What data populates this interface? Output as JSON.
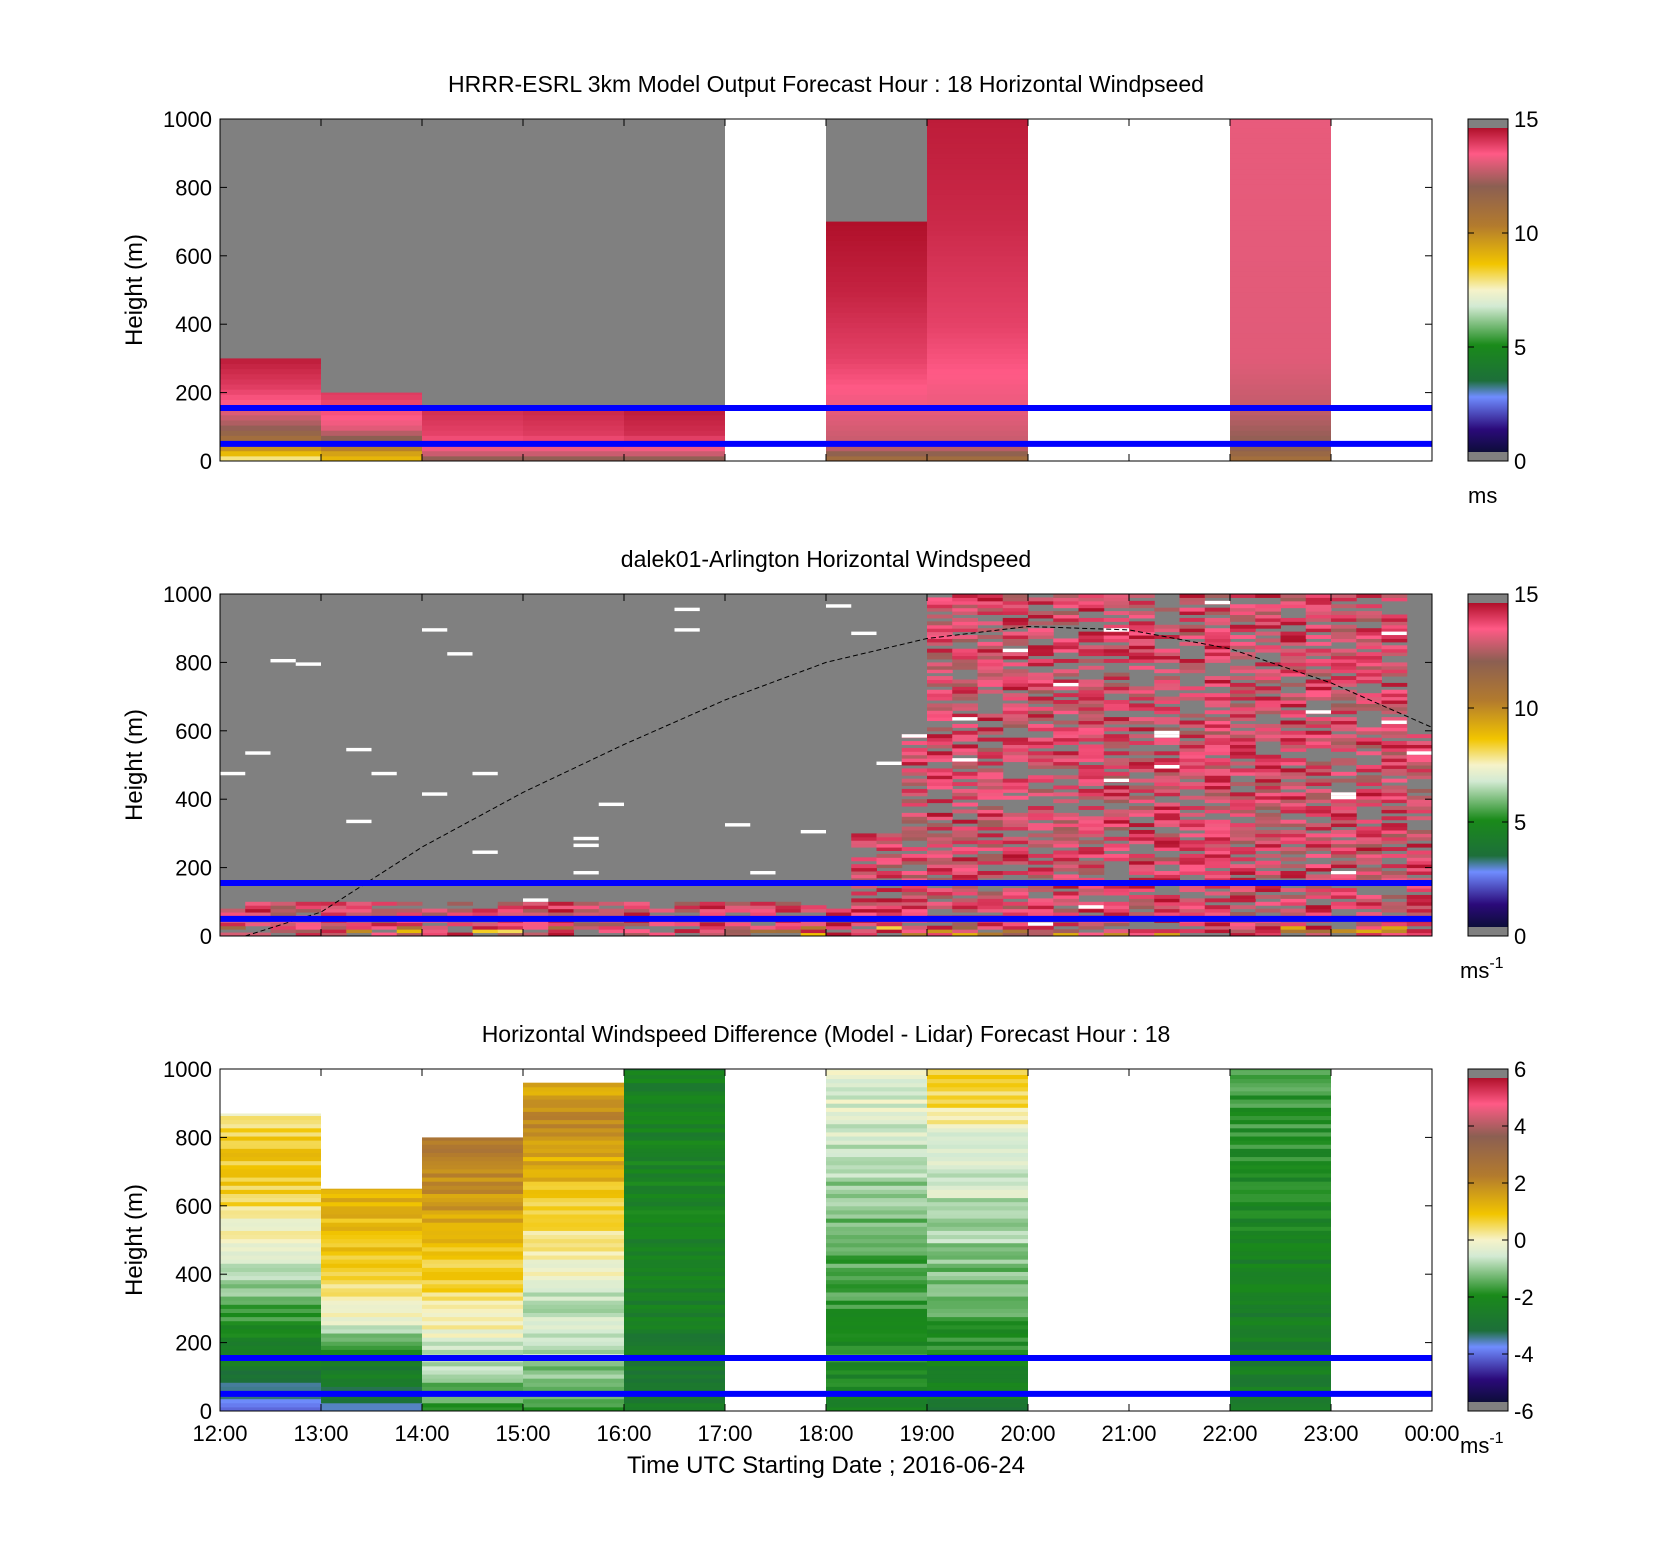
{
  "figure": {
    "xlabel": "Time UTC  Starting Date ; 2016-06-24",
    "x_ticks": [
      "12:00",
      "13:00",
      "14:00",
      "15:00",
      "16:00",
      "17:00",
      "18:00",
      "19:00",
      "20:00",
      "21:00",
      "22:00",
      "23:00",
      "00:00"
    ],
    "y_ticks": [
      "0",
      "200",
      "400",
      "600",
      "800",
      "1000"
    ],
    "ylabel": "Height (m)",
    "reference_lines_m": [
      50,
      155
    ],
    "reference_line_color": "#0000ff"
  },
  "chart_data": [
    {
      "type": "heatmap",
      "title": "HRRR-ESRL 3km Model Output   Forecast Hour : 18 Horizontal Windpseed",
      "ylabel": "Height (m)",
      "ylim": [
        0,
        1000
      ],
      "xlim_hours": [
        12,
        24
      ],
      "colorbar": {
        "ticks": [
          "0",
          "5",
          "10",
          "15"
        ],
        "range": [
          0,
          15
        ],
        "unit": "ms",
        "unit_sup": ""
      },
      "columns": [
        {
          "start_hour": 12,
          "end_hour": 13,
          "top_m": 300,
          "fill": "gray",
          "profile_m_to_ms": [
            [
              0,
              7.4
            ],
            [
              30,
              9.5
            ],
            [
              60,
              11
            ],
            [
              100,
              12.5
            ],
            [
              150,
              13.5
            ],
            [
              220,
              14.3
            ],
            [
              300,
              14.8
            ]
          ]
        },
        {
          "start_hour": 13,
          "end_hour": 14,
          "top_m": 200,
          "fill": "gray",
          "profile_m_to_ms": [
            [
              0,
              8.8
            ],
            [
              30,
              9.8
            ],
            [
              60,
              12
            ],
            [
              100,
              13.5
            ],
            [
              150,
              14
            ],
            [
              200,
              14.3
            ]
          ]
        },
        {
          "start_hour": 14,
          "end_hour": 15,
          "top_m": 150,
          "fill": "gray",
          "profile_m_to_ms": [
            [
              0,
              12
            ],
            [
              30,
              13.5
            ],
            [
              80,
              14.2
            ],
            [
              150,
              14.5
            ]
          ]
        },
        {
          "start_hour": 15,
          "end_hour": 16,
          "top_m": 150,
          "fill": "gray",
          "profile_m_to_ms": [
            [
              0,
              12
            ],
            [
              30,
              13.5
            ],
            [
              80,
              14.3
            ],
            [
              150,
              14.6
            ]
          ]
        },
        {
          "start_hour": 16,
          "end_hour": 17,
          "top_m": 150,
          "fill": "gray",
          "profile_m_to_ms": [
            [
              0,
              12
            ],
            [
              30,
              13.5
            ],
            [
              80,
              14.5
            ],
            [
              150,
              14.8
            ]
          ]
        },
        {
          "start_hour": 18,
          "end_hour": 19,
          "top_m": 700,
          "fill": "gray",
          "profile_m_to_ms": [
            [
              0,
              11
            ],
            [
              40,
              13
            ],
            [
              150,
              13.5
            ],
            [
              300,
              14.2
            ],
            [
              500,
              14.7
            ],
            [
              700,
              15
            ]
          ]
        },
        {
          "start_hour": 19,
          "end_hour": 20,
          "top_m": 1000,
          "fill": "gray",
          "profile_m_to_ms": [
            [
              0,
              11
            ],
            [
              40,
              13
            ],
            [
              150,
              13.5
            ],
            [
              400,
              14.2
            ],
            [
              700,
              14.6
            ],
            [
              1000,
              14.8
            ]
          ]
        },
        {
          "start_hour": 22,
          "end_hour": 23,
          "top_m": 1000,
          "fill": "gray",
          "profile_m_to_ms": [
            [
              0,
              11
            ],
            [
              40,
              12.2
            ],
            [
              150,
              13
            ],
            [
              300,
              13.4
            ],
            [
              1000,
              13.5
            ]
          ]
        }
      ]
    },
    {
      "type": "heatmap",
      "title": "dalek01-Arlington  Horizontal Windspeed",
      "ylabel": "Height (m)",
      "ylim": [
        0,
        1000
      ],
      "xlim_hours": [
        12,
        24
      ],
      "colorbar": {
        "ticks": [
          "0",
          "5",
          "10",
          "15"
        ],
        "range": [
          0,
          15
        ],
        "unit": "ms",
        "unit_sup": "-1"
      },
      "background": "gray",
      "observation_pattern": "dense 15-minute profiles; strong winds (13-15 m/s) from ~19:00 onward over most of the column; near-surface strong winds throughout; sparse data elsewhere",
      "dashed_curve_m": [
        [
          12.25,
          0
        ],
        [
          13,
          70
        ],
        [
          14,
          260
        ],
        [
          15,
          420
        ],
        [
          16,
          560
        ],
        [
          17,
          690
        ],
        [
          18,
          800
        ],
        [
          19,
          870
        ],
        [
          20,
          905
        ],
        [
          21,
          895
        ],
        [
          22,
          840
        ],
        [
          23,
          740
        ],
        [
          24,
          610
        ]
      ]
    },
    {
      "type": "heatmap",
      "title": "Horizontal Windspeed Difference (Model - Lidar) Forecast Hour : 18",
      "ylabel": "Height (m)",
      "xlabel": "Time UTC  Starting Date ; 2016-06-24",
      "ylim": [
        0,
        1000
      ],
      "xlim_hours": [
        12,
        24
      ],
      "colorbar": {
        "ticks": [
          "-6",
          "-4",
          "-2",
          "0",
          "2",
          "4",
          "6"
        ],
        "range": [
          -6,
          6
        ],
        "unit": "ms",
        "unit_sup": "-1"
      },
      "columns": [
        {
          "start_hour": 12,
          "end_hour": 13,
          "top_m": 870,
          "profile_m_to_diff": [
            [
              0,
              -4
            ],
            [
              100,
              -3
            ],
            [
              250,
              -2
            ],
            [
              450,
              -0.5
            ],
            [
              600,
              0.5
            ],
            [
              750,
              1
            ],
            [
              870,
              0.3
            ]
          ]
        },
        {
          "start_hour": 13,
          "end_hour": 14,
          "top_m": 650,
          "profile_m_to_diff": [
            [
              0,
              -3.5
            ],
            [
              150,
              -2.5
            ],
            [
              250,
              -0.5
            ],
            [
              350,
              0.5
            ],
            [
              500,
              1
            ],
            [
              650,
              1.5
            ]
          ]
        },
        {
          "start_hour": 14,
          "end_hour": 15,
          "top_m": 800,
          "profile_m_to_diff": [
            [
              0,
              -2
            ],
            [
              150,
              -0.8
            ],
            [
              300,
              0.3
            ],
            [
              500,
              1.2
            ],
            [
              650,
              2
            ],
            [
              800,
              2.5
            ]
          ]
        },
        {
          "start_hour": 15,
          "end_hour": 16,
          "top_m": 960,
          "profile_m_to_diff": [
            [
              0,
              -2
            ],
            [
              150,
              -1
            ],
            [
              350,
              -0.5
            ],
            [
              500,
              0.3
            ],
            [
              700,
              1.3
            ],
            [
              850,
              2
            ],
            [
              960,
              1.5
            ]
          ]
        },
        {
          "start_hour": 16,
          "end_hour": 17,
          "top_m": 1000,
          "profile_m_to_diff": [
            [
              0,
              -3
            ],
            [
              200,
              -2.7
            ],
            [
              600,
              -2.3
            ],
            [
              1000,
              -2.5
            ]
          ]
        },
        {
          "start_hour": 18,
          "end_hour": 19,
          "top_m": 1000,
          "profile_m_to_diff": [
            [
              0,
              -2.5
            ],
            [
              200,
              -2
            ],
            [
              500,
              -1.5
            ],
            [
              800,
              -0.6
            ],
            [
              1000,
              -0.3
            ]
          ]
        },
        {
          "start_hour": 19,
          "end_hour": 20,
          "top_m": 1000,
          "profile_m_to_diff": [
            [
              0,
              -2.8
            ],
            [
              200,
              -2
            ],
            [
              500,
              -1
            ],
            [
              800,
              -0.3
            ],
            [
              900,
              0.5
            ],
            [
              1000,
              1
            ]
          ]
        },
        {
          "start_hour": 22,
          "end_hour": 23,
          "top_m": 1000,
          "profile_m_to_diff": [
            [
              0,
              -2.8
            ],
            [
              400,
              -2.5
            ],
            [
              800,
              -2
            ],
            [
              1000,
              -1.8
            ]
          ]
        }
      ]
    }
  ]
}
